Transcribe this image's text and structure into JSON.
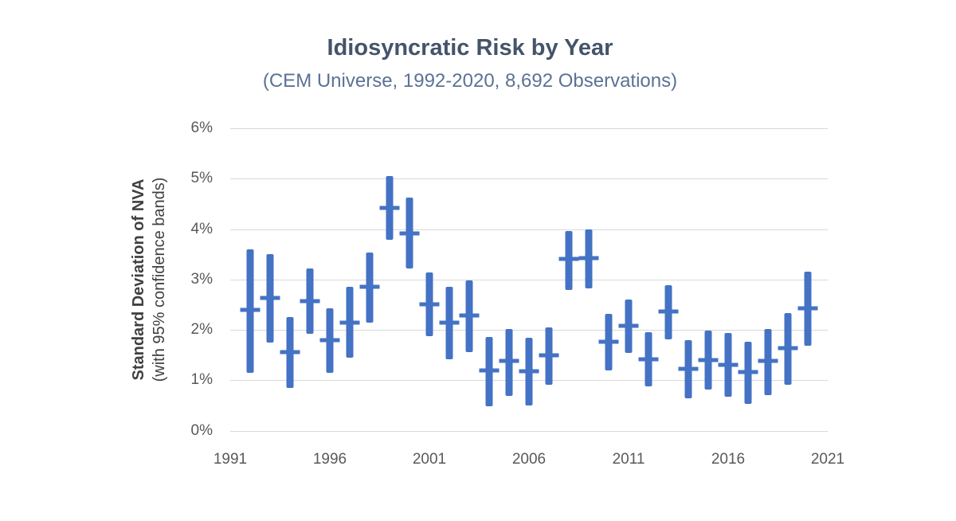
{
  "title": "Idiosyncratic Risk by Year",
  "subtitle": "(CEM Universe, 1992-2020, 8,692 Observations)",
  "colors": {
    "bar": "#4472C4",
    "gridline": "#D9D9D9",
    "tick_label": "#595959",
    "title": "#44546A",
    "subtitle": "#5B7294",
    "axis_title": "#404040",
    "background": "#FFFFFF"
  },
  "chart_data": {
    "type": "error-bar",
    "title": "Idiosyncratic Risk by Year",
    "subtitle": "(CEM Universe, 1992-2020, 8,692 Observations)",
    "ylabel_line1": "Standard Deviation of NVA",
    "ylabel_line2": "(with 95% confidence bands)",
    "unit": "%",
    "grid": "horizontal",
    "legend": "none",
    "ylim": [
      0,
      6
    ],
    "xlim": [
      1991,
      2021
    ],
    "y_tick_values": [
      0,
      1,
      2,
      3,
      4,
      5,
      6
    ],
    "y_tick_labels": [
      "0%",
      "1%",
      "2%",
      "3%",
      "4%",
      "5%",
      "6%"
    ],
    "x_tick_values": [
      1991,
      1996,
      2001,
      2006,
      2011,
      2016,
      2021
    ],
    "x_tick_labels": [
      "1991",
      "1996",
      "2001",
      "2006",
      "2011",
      "2016",
      "2021"
    ],
    "points": [
      {
        "year": 1992,
        "low": 1.15,
        "mid": 2.4,
        "high": 3.6
      },
      {
        "year": 1993,
        "low": 1.75,
        "mid": 2.63,
        "high": 3.5
      },
      {
        "year": 1994,
        "low": 0.85,
        "mid": 1.55,
        "high": 2.25
      },
      {
        "year": 1995,
        "low": 1.92,
        "mid": 2.57,
        "high": 3.22
      },
      {
        "year": 1996,
        "low": 1.15,
        "mid": 1.8,
        "high": 2.43
      },
      {
        "year": 1997,
        "low": 1.45,
        "mid": 2.14,
        "high": 2.86
      },
      {
        "year": 1998,
        "low": 2.14,
        "mid": 2.85,
        "high": 3.53
      },
      {
        "year": 1999,
        "low": 3.79,
        "mid": 4.42,
        "high": 5.05
      },
      {
        "year": 2000,
        "low": 3.22,
        "mid": 3.92,
        "high": 4.62
      },
      {
        "year": 2001,
        "low": 1.87,
        "mid": 2.5,
        "high": 3.14
      },
      {
        "year": 2002,
        "low": 1.42,
        "mid": 2.14,
        "high": 2.85
      },
      {
        "year": 2003,
        "low": 1.55,
        "mid": 2.28,
        "high": 2.98
      },
      {
        "year": 2004,
        "low": 0.49,
        "mid": 1.19,
        "high": 1.85
      },
      {
        "year": 2005,
        "low": 0.68,
        "mid": 1.39,
        "high": 2.01
      },
      {
        "year": 2006,
        "low": 0.5,
        "mid": 1.18,
        "high": 1.84
      },
      {
        "year": 2007,
        "low": 0.91,
        "mid": 1.49,
        "high": 2.05
      },
      {
        "year": 2008,
        "low": 2.79,
        "mid": 3.4,
        "high": 3.96
      },
      {
        "year": 2009,
        "low": 2.82,
        "mid": 3.43,
        "high": 4.0
      },
      {
        "year": 2010,
        "low": 1.2,
        "mid": 1.76,
        "high": 2.31
      },
      {
        "year": 2011,
        "low": 1.54,
        "mid": 2.08,
        "high": 2.6
      },
      {
        "year": 2012,
        "low": 0.88,
        "mid": 1.42,
        "high": 1.96
      },
      {
        "year": 2013,
        "low": 1.81,
        "mid": 2.36,
        "high": 2.89
      },
      {
        "year": 2014,
        "low": 0.64,
        "mid": 1.23,
        "high": 1.79
      },
      {
        "year": 2015,
        "low": 0.82,
        "mid": 1.4,
        "high": 1.98
      },
      {
        "year": 2016,
        "low": 0.67,
        "mid": 1.31,
        "high": 1.94
      },
      {
        "year": 2017,
        "low": 0.53,
        "mid": 1.16,
        "high": 1.77
      },
      {
        "year": 2018,
        "low": 0.71,
        "mid": 1.38,
        "high": 2.02
      },
      {
        "year": 2019,
        "low": 0.91,
        "mid": 1.63,
        "high": 2.33
      },
      {
        "year": 2020,
        "low": 1.68,
        "mid": 2.43,
        "high": 3.15
      }
    ]
  }
}
